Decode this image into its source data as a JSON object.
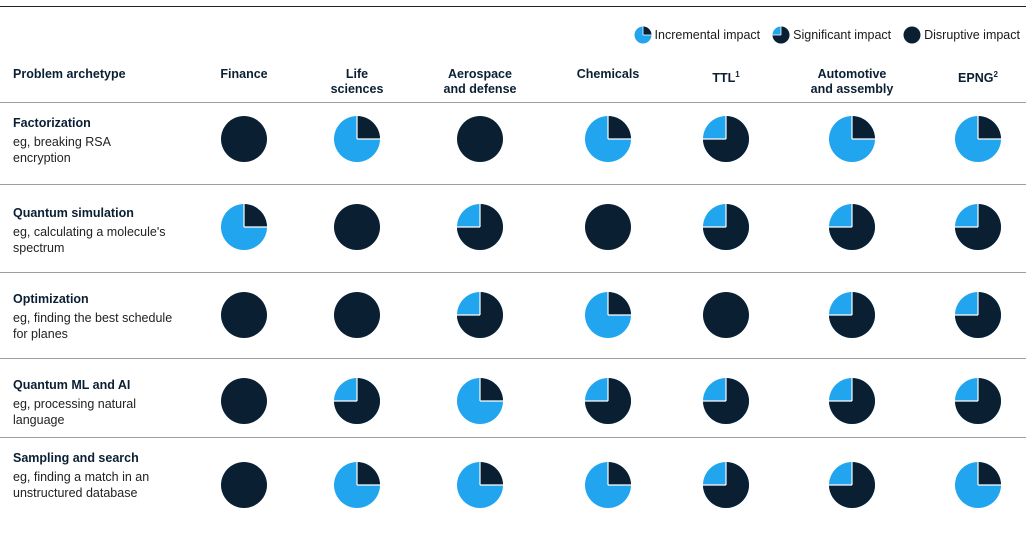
{
  "legend": [
    {
      "label": "Incremental impact",
      "level": 0.25
    },
    {
      "label": "Significant impact",
      "level": 0.75
    },
    {
      "label": "Disruptive impact",
      "level": 1.0
    }
  ],
  "colors": {
    "dark": "#0b1f33",
    "light": "#21a5ee"
  },
  "row_header": "Problem archetype",
  "columns": [
    {
      "label": "Finance",
      "sup": ""
    },
    {
      "label": "Life sciences",
      "sup": ""
    },
    {
      "label": "Aerospace and defense",
      "sup": ""
    },
    {
      "label": "Chemicals",
      "sup": ""
    },
    {
      "label": "TTL",
      "sup": "1"
    },
    {
      "label": "Automotive and assembly",
      "sup": ""
    },
    {
      "label": "EPNG",
      "sup": "2"
    }
  ],
  "rows": [
    {
      "title": "Factorization",
      "desc": "eg, breaking RSA encryption"
    },
    {
      "title": "Quantum simulation",
      "desc": "eg, calculating a molecule's spectrum"
    },
    {
      "title": "Optimization",
      "desc": "eg, finding the best schedule for planes"
    },
    {
      "title": "Quantum ML and AI",
      "desc": "eg, processing natural language"
    },
    {
      "title": "Sampling and search",
      "desc": "eg, finding a match in an unstructured database"
    }
  ],
  "chart_data": {
    "type": "table",
    "row_labels": [
      "Factorization",
      "Quantum simulation",
      "Optimization",
      "Quantum ML and AI",
      "Sampling and search"
    ],
    "column_labels": [
      "Finance",
      "Life sciences",
      "Aerospace and defense",
      "Chemicals",
      "TTL",
      "Automotive and assembly",
      "EPNG"
    ],
    "impact_levels": [
      "Incremental impact",
      "Significant impact",
      "Disruptive impact"
    ],
    "values": [
      [
        "Disruptive impact",
        "Incremental impact",
        "Disruptive impact",
        "Incremental impact",
        "Significant impact",
        "Incremental impact",
        "Incremental impact"
      ],
      [
        "Incremental impact",
        "Disruptive impact",
        "Significant impact",
        "Disruptive impact",
        "Significant impact",
        "Significant impact",
        "Significant impact"
      ],
      [
        "Disruptive impact",
        "Disruptive impact",
        "Significant impact",
        "Incremental impact",
        "Disruptive impact",
        "Significant impact",
        "Significant impact"
      ],
      [
        "Disruptive impact",
        "Significant impact",
        "Incremental impact",
        "Significant impact",
        "Significant impact",
        "Significant impact",
        "Significant impact"
      ],
      [
        "Disruptive impact",
        "Incremental impact",
        "Incremental impact",
        "Incremental impact",
        "Significant impact",
        "Significant impact",
        "Incremental impact"
      ]
    ]
  }
}
